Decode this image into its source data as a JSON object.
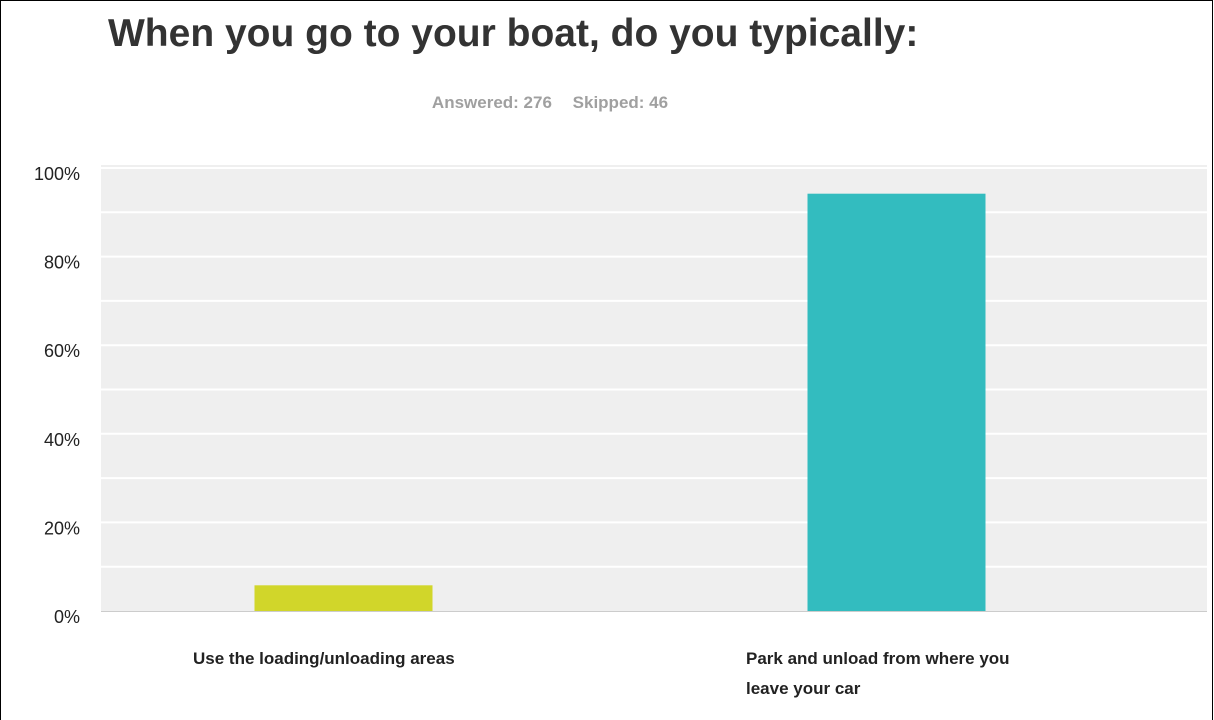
{
  "chart_data": {
    "type": "bar",
    "title": "When you go to your boat, do you typically:",
    "stats": {
      "answered": "Answered: 276",
      "skipped": "Skipped: 46"
    },
    "categories": [
      "Use the loading/unloading areas",
      "Park and unload from where you leave your car"
    ],
    "category_lines": [
      [
        "Use the loading/unloading areas"
      ],
      [
        "Park and unload from where you",
        "leave your car"
      ]
    ],
    "values": [
      5.8,
      94.2
    ],
    "colors": [
      "#d1d62a",
      "#33bcbf"
    ],
    "y_ticks": [
      "0%",
      "20%",
      "40%",
      "60%",
      "80%",
      "100%"
    ],
    "ylim": [
      0,
      100
    ],
    "grid": true,
    "colors_ui": {
      "plot_bg": "#efefef",
      "gridline": "#ffffff",
      "baseline": "#cccccc",
      "title": "#333333",
      "stats": "#a0a0a0"
    }
  }
}
